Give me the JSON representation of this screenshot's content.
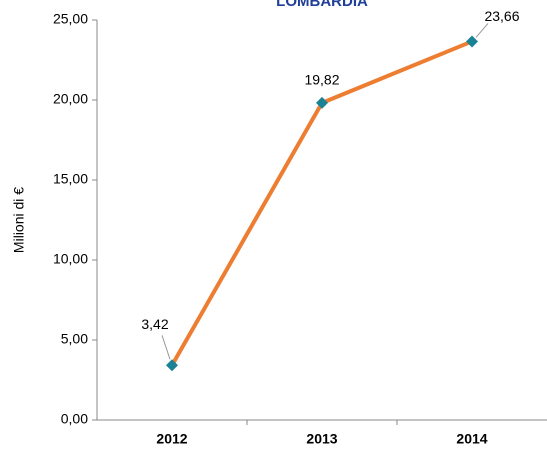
{
  "chart_data": {
    "type": "line",
    "title": "LOMBARDIA",
    "y_label": "Milioni di €",
    "categories": [
      "2012",
      "2013",
      "2014"
    ],
    "series": [
      {
        "name": "LOMBARDIA",
        "color": "#ed7d31",
        "marker_color": "#1b8296",
        "values": [
          3.42,
          19.82,
          23.66
        ],
        "value_labels": [
          "3,42",
          "19,82",
          "23,66"
        ]
      }
    ],
    "ylim": [
      0,
      25
    ],
    "yticks": [
      {
        "value": 0,
        "label": "0,00"
      },
      {
        "value": 5,
        "label": "5,00"
      },
      {
        "value": 10,
        "label": "10,00"
      },
      {
        "value": 15,
        "label": "15,00"
      },
      {
        "value": 20,
        "label": "20,00"
      },
      {
        "value": 25,
        "label": "25,00"
      }
    ]
  }
}
